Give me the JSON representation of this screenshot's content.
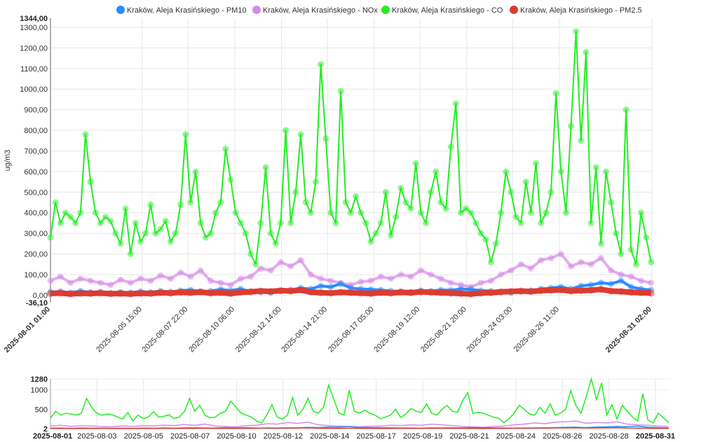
{
  "chart_data": {
    "type": "line",
    "ylabel": "ug/m3",
    "ylim": [
      -36.1,
      1344.0
    ],
    "y_ticks": [
      "1300,00",
      "1200,00",
      "1100,00",
      "1000,00",
      "900,00",
      "800,00",
      "700,00",
      "600,00",
      "500,00",
      "400,00",
      "300,00",
      "200,00",
      "100,00",
      "0,00"
    ],
    "y_max_label": "1344,00",
    "y_min_label": "-36,10",
    "x_start": "2025-08-01 01:00",
    "x_end": "2025-08-31 02:00",
    "x_tick_labels": [
      "2025-08-01 01:00",
      "2025-08-05 15:00",
      "2025-08-07 22:00",
      "2025-08-10 06:00",
      "2025-08-12 14:00",
      "2025-08-14 21:00",
      "2025-08-17 05:00",
      "2025-08-19 12:00",
      "2025-08-21 20:00",
      "2025-08-24 03:00",
      "2025-08-26 11:00",
      "2025-08-31 02:00"
    ],
    "x_tick_hours": [
      0,
      110,
      165,
      221,
      277,
      332,
      388,
      443,
      499,
      554,
      610,
      721
    ],
    "grid": true,
    "legend_position": "top-center",
    "series": [
      {
        "name": "Kraków, Aleja Krasińskiego - PM10",
        "color": "#2b8cff",
        "step_hours": 12,
        "values": [
          15,
          18,
          12,
          20,
          14,
          16,
          10,
          15,
          12,
          18,
          14,
          20,
          16,
          22,
          25,
          18,
          20,
          28,
          22,
          30,
          18,
          15,
          12,
          20,
          25,
          35,
          30,
          45,
          40,
          55,
          35,
          30,
          28,
          25,
          20,
          18,
          15,
          22,
          20,
          25,
          24,
          30,
          28,
          22,
          20,
          15,
          12,
          18,
          22,
          30,
          35,
          40,
          30,
          45,
          50,
          60,
          55,
          70,
          40,
          30,
          25
        ]
      },
      {
        "name": "Kraków, Aleja Krasińskiego - NOx",
        "color": "#d68ae8",
        "step_hours": 12,
        "values": [
          70,
          90,
          60,
          80,
          70,
          60,
          50,
          75,
          60,
          80,
          70,
          95,
          80,
          110,
          90,
          120,
          70,
          60,
          50,
          80,
          90,
          130,
          120,
          160,
          140,
          170,
          100,
          80,
          70,
          60,
          50,
          65,
          70,
          90,
          80,
          100,
          90,
          120,
          100,
          80,
          60,
          50,
          40,
          60,
          70,
          100,
          120,
          150,
          130,
          170,
          180,
          200,
          140,
          160,
          150,
          180,
          120,
          100,
          90,
          70,
          60
        ]
      },
      {
        "name": "Kraków, Aleja Krasińskiego - CO",
        "color": "#22ee22",
        "step_hours": 6,
        "values": [
          280,
          450,
          350,
          400,
          380,
          350,
          400,
          780,
          550,
          400,
          350,
          380,
          360,
          300,
          250,
          420,
          200,
          350,
          260,
          300,
          440,
          300,
          320,
          360,
          260,
          300,
          440,
          780,
          450,
          600,
          350,
          280,
          300,
          400,
          450,
          710,
          560,
          400,
          350,
          300,
          200,
          150,
          350,
          620,
          300,
          250,
          350,
          800,
          350,
          500,
          780,
          450,
          400,
          550,
          1120,
          760,
          400,
          350,
          990,
          450,
          400,
          480,
          400,
          350,
          260,
          300,
          350,
          500,
          290,
          380,
          520,
          450,
          420,
          640,
          400,
          350,
          500,
          600,
          450,
          420,
          720,
          930,
          400,
          420,
          400,
          350,
          300,
          270,
          160,
          250,
          400,
          600,
          500,
          380,
          350,
          550,
          400,
          640,
          350,
          400,
          500,
          980,
          600,
          400,
          820,
          1280,
          750,
          1180,
          350,
          620,
          250,
          600,
          450,
          300,
          200,
          900,
          220,
          150,
          400,
          280,
          160
        ]
      },
      {
        "name": "Kraków, Aleja Krasińskiego - PM2.5",
        "color": "#dd3b30",
        "step_hours": 12,
        "values": [
          8,
          10,
          6,
          9,
          8,
          10,
          7,
          8,
          6,
          9,
          8,
          12,
          10,
          14,
          12,
          15,
          10,
          12,
          8,
          14,
          16,
          20,
          18,
          22,
          20,
          25,
          15,
          12,
          10,
          14,
          12,
          10,
          8,
          12,
          10,
          14,
          12,
          16,
          14,
          12,
          10,
          8,
          6,
          10,
          12,
          16,
          18,
          20,
          18,
          22,
          24,
          26,
          20,
          22,
          24,
          28,
          20,
          18,
          14,
          12,
          10
        ]
      }
    ],
    "navigator": {
      "y_labels": [
        "1280",
        "1000",
        "500",
        "2"
      ],
      "y_values": [
        1280,
        1000,
        500,
        2
      ],
      "ylim": [
        2,
        1280
      ],
      "x_labels": [
        "2025-08-01",
        "2025-08-03",
        "2025-08-05",
        "2025-08-07",
        "2025-08-10",
        "2025-08-12",
        "2025-08-14",
        "2025-08-17",
        "2025-08-19",
        "2025-08-21",
        "2025-08-24",
        "2025-08-26",
        "2025-08-28",
        "2025-08-31"
      ]
    }
  }
}
